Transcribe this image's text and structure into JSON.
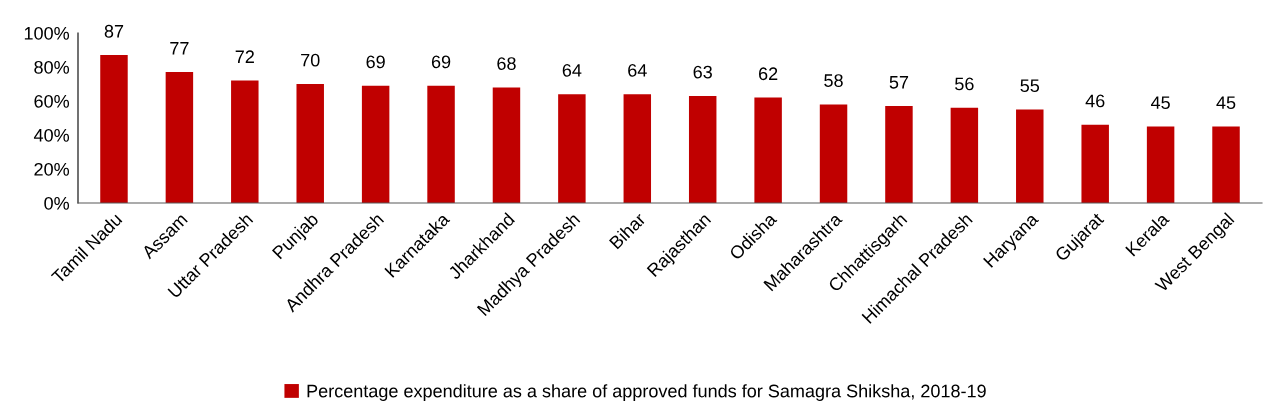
{
  "chart_data": {
    "type": "bar",
    "categories": [
      "Tamil Nadu",
      "Assam",
      "Uttar Pradesh",
      "Punjab",
      "Andhra Pradesh",
      "Karnataka",
      "Jharkhand",
      "Madhya Pradesh",
      "Bihar",
      "Rajasthan",
      "Odisha",
      "Maharashtra",
      "Chhattisgarh",
      "Himachal Pradesh",
      "Haryana",
      "Gujarat",
      "Kerala",
      "West Bengal"
    ],
    "series": [
      {
        "name": "Percentage expenditure as a share of approved funds for Samagra Shiksha, 2018-19",
        "color": "#c00000",
        "values": [
          87,
          77,
          72,
          70,
          69,
          69,
          68,
          64,
          64,
          63,
          62,
          58,
          57,
          56,
          55,
          46,
          45,
          45
        ]
      }
    ],
    "ylim": [
      0,
      100
    ],
    "yticks": [
      {
        "value": 0,
        "label": "0%"
      },
      {
        "value": 20,
        "label": "20%"
      },
      {
        "value": 40,
        "label": "40%"
      },
      {
        "value": 60,
        "label": "60%"
      },
      {
        "value": 80,
        "label": "80%"
      },
      {
        "value": 100,
        "label": "100%"
      }
    ],
    "data_labels": true,
    "grid": false,
    "legend": "bottom"
  }
}
